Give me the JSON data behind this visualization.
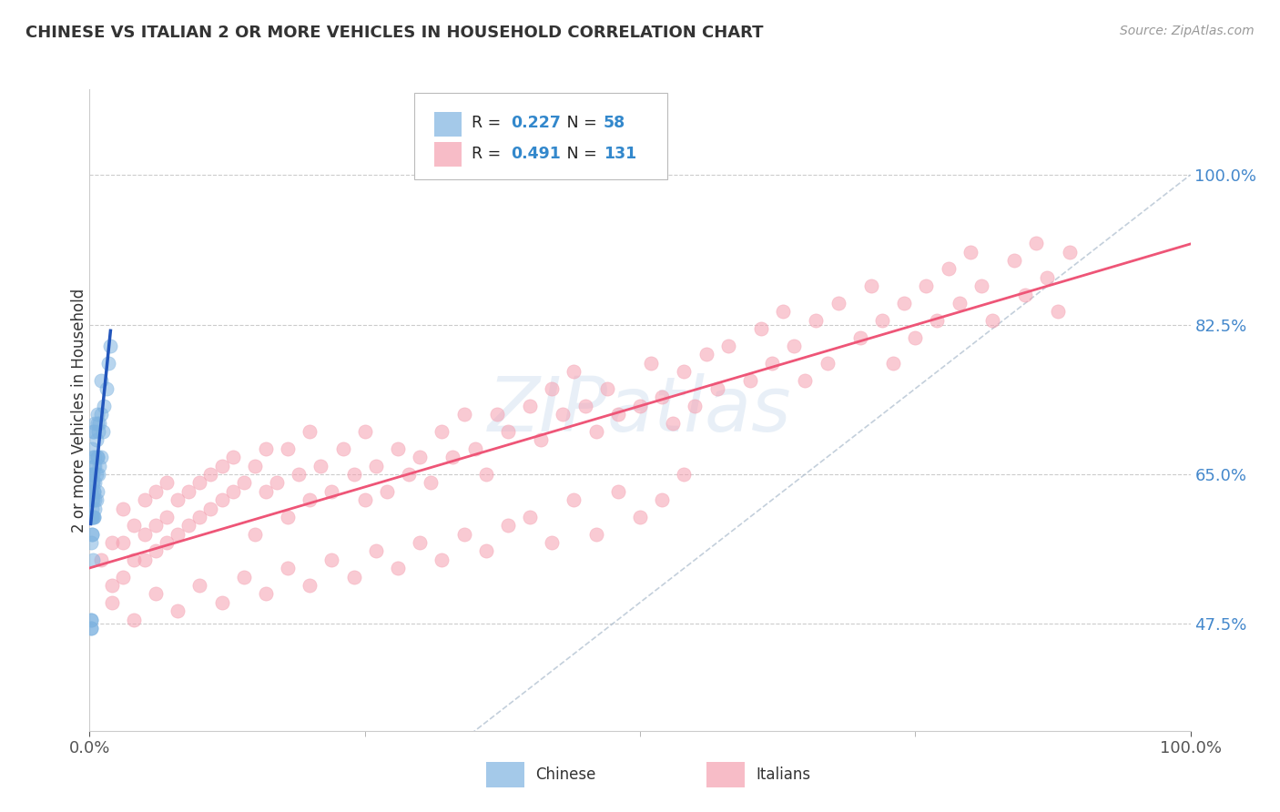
{
  "title": "CHINESE VS ITALIAN 2 OR MORE VEHICLES IN HOUSEHOLD CORRELATION CHART",
  "source": "Source: ZipAtlas.com",
  "ylabel": "2 or more Vehicles in Household",
  "ytick_values": [
    0.475,
    0.65,
    0.825,
    1.0
  ],
  "ytick_labels": [
    "47.5%",
    "65.0%",
    "82.5%",
    "100.0%"
  ],
  "xtick_values": [
    0.0,
    1.0
  ],
  "xtick_labels": [
    "0.0%",
    "100.0%"
  ],
  "legend_chinese_r": "0.227",
  "legend_chinese_n": "58",
  "legend_italian_r": "0.491",
  "legend_italian_n": "131",
  "chinese_color": "#7EB3E0",
  "italian_color": "#F5A0B0",
  "chinese_line_color": "#2255BB",
  "italian_line_color": "#EE5577",
  "background_color": "#FFFFFF",
  "xlim": [
    0.0,
    1.0
  ],
  "ylim": [
    0.35,
    1.1
  ],
  "chinese_x": [
    0.001,
    0.001,
    0.001,
    0.001,
    0.001,
    0.002,
    0.002,
    0.002,
    0.002,
    0.003,
    0.003,
    0.003,
    0.003,
    0.003,
    0.004,
    0.004,
    0.004,
    0.004,
    0.005,
    0.005,
    0.005,
    0.005,
    0.006,
    0.006,
    0.006,
    0.007,
    0.007,
    0.007,
    0.008,
    0.008,
    0.009,
    0.009,
    0.01,
    0.01,
    0.01,
    0.012,
    0.013,
    0.015,
    0.017,
    0.019,
    0.001,
    0.001,
    0.002,
    0.002,
    0.003,
    0.003,
    0.004,
    0.004,
    0.001,
    0.001,
    0.001,
    0.002,
    0.002,
    0.003,
    0.005,
    0.005,
    0.007,
    0.007
  ],
  "chinese_y": [
    0.47,
    0.48,
    0.6,
    0.63,
    0.65,
    0.58,
    0.62,
    0.65,
    0.68,
    0.55,
    0.6,
    0.64,
    0.67,
    0.7,
    0.6,
    0.63,
    0.66,
    0.7,
    0.61,
    0.64,
    0.67,
    0.71,
    0.62,
    0.65,
    0.69,
    0.63,
    0.67,
    0.71,
    0.65,
    0.7,
    0.66,
    0.71,
    0.67,
    0.72,
    0.76,
    0.7,
    0.73,
    0.75,
    0.78,
    0.8,
    0.47,
    0.48,
    0.58,
    0.6,
    0.62,
    0.64,
    0.6,
    0.63,
    0.57,
    0.6,
    0.63,
    0.61,
    0.64,
    0.65,
    0.62,
    0.66,
    0.67,
    0.72
  ],
  "italian_x": [
    0.01,
    0.02,
    0.02,
    0.03,
    0.03,
    0.03,
    0.04,
    0.04,
    0.05,
    0.05,
    0.05,
    0.06,
    0.06,
    0.06,
    0.07,
    0.07,
    0.07,
    0.08,
    0.08,
    0.09,
    0.09,
    0.1,
    0.1,
    0.11,
    0.11,
    0.12,
    0.12,
    0.13,
    0.13,
    0.14,
    0.15,
    0.15,
    0.16,
    0.16,
    0.17,
    0.18,
    0.18,
    0.19,
    0.2,
    0.2,
    0.21,
    0.22,
    0.23,
    0.24,
    0.25,
    0.25,
    0.26,
    0.27,
    0.28,
    0.29,
    0.3,
    0.31,
    0.32,
    0.33,
    0.34,
    0.35,
    0.36,
    0.37,
    0.38,
    0.4,
    0.41,
    0.42,
    0.43,
    0.44,
    0.45,
    0.46,
    0.47,
    0.48,
    0.5,
    0.51,
    0.52,
    0.53,
    0.54,
    0.55,
    0.56,
    0.57,
    0.58,
    0.6,
    0.61,
    0.62,
    0.63,
    0.64,
    0.65,
    0.66,
    0.67,
    0.68,
    0.7,
    0.71,
    0.72,
    0.73,
    0.74,
    0.75,
    0.76,
    0.77,
    0.78,
    0.79,
    0.8,
    0.81,
    0.82,
    0.84,
    0.85,
    0.86,
    0.87,
    0.88,
    0.89,
    0.02,
    0.04,
    0.06,
    0.08,
    0.1,
    0.12,
    0.14,
    0.16,
    0.18,
    0.2,
    0.22,
    0.24,
    0.26,
    0.28,
    0.3,
    0.32,
    0.34,
    0.36,
    0.38,
    0.4,
    0.42,
    0.44,
    0.46,
    0.48,
    0.5,
    0.52,
    0.54
  ],
  "italian_y": [
    0.55,
    0.52,
    0.57,
    0.53,
    0.57,
    0.61,
    0.55,
    0.59,
    0.55,
    0.58,
    0.62,
    0.56,
    0.59,
    0.63,
    0.57,
    0.6,
    0.64,
    0.58,
    0.62,
    0.59,
    0.63,
    0.6,
    0.64,
    0.61,
    0.65,
    0.62,
    0.66,
    0.63,
    0.67,
    0.64,
    0.58,
    0.66,
    0.63,
    0.68,
    0.64,
    0.6,
    0.68,
    0.65,
    0.62,
    0.7,
    0.66,
    0.63,
    0.68,
    0.65,
    0.7,
    0.62,
    0.66,
    0.63,
    0.68,
    0.65,
    0.67,
    0.64,
    0.7,
    0.67,
    0.72,
    0.68,
    0.65,
    0.72,
    0.7,
    0.73,
    0.69,
    0.75,
    0.72,
    0.77,
    0.73,
    0.7,
    0.75,
    0.72,
    0.73,
    0.78,
    0.74,
    0.71,
    0.77,
    0.73,
    0.79,
    0.75,
    0.8,
    0.76,
    0.82,
    0.78,
    0.84,
    0.8,
    0.76,
    0.83,
    0.78,
    0.85,
    0.81,
    0.87,
    0.83,
    0.78,
    0.85,
    0.81,
    0.87,
    0.83,
    0.89,
    0.85,
    0.91,
    0.87,
    0.83,
    0.9,
    0.86,
    0.92,
    0.88,
    0.84,
    0.91,
    0.5,
    0.48,
    0.51,
    0.49,
    0.52,
    0.5,
    0.53,
    0.51,
    0.54,
    0.52,
    0.55,
    0.53,
    0.56,
    0.54,
    0.57,
    0.55,
    0.58,
    0.56,
    0.59,
    0.6,
    0.57,
    0.62,
    0.58,
    0.63,
    0.6,
    0.62,
    0.65
  ]
}
